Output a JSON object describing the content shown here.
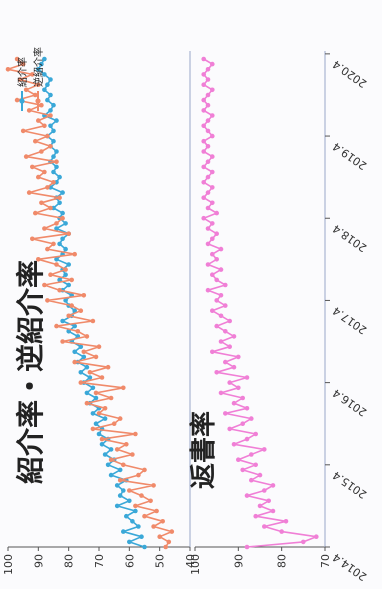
{
  "chart_data": [
    {
      "type": "line",
      "title": "紹介率・逆紹介率",
      "ylim": [
        40,
        100
      ],
      "yticks": [
        "40",
        "50",
        "60",
        "70",
        "80",
        "90",
        "100"
      ],
      "legend_position": "top-right",
      "grid": false,
      "series": [
        {
          "name": "紹介率",
          "color": "#3aa8d8",
          "values": [
            55,
            60,
            56,
            62,
            57,
            59,
            61,
            58,
            64,
            60,
            63,
            62,
            64,
            61,
            66,
            63,
            67,
            65,
            68,
            66,
            69,
            67,
            70,
            69,
            71,
            68,
            72,
            70,
            73,
            71,
            74,
            72,
            75,
            73,
            76,
            74,
            77,
            75,
            78,
            76,
            79,
            77,
            80,
            78,
            82,
            79,
            78,
            80,
            81,
            79,
            82,
            80,
            83,
            81,
            82,
            80,
            84,
            82,
            81,
            83,
            82,
            80,
            84,
            81,
            83,
            82,
            85,
            83,
            84,
            82,
            86,
            84,
            83,
            85,
            84,
            86,
            85,
            84,
            86,
            85,
            87,
            85,
            86,
            84,
            88,
            86,
            85,
            87,
            86,
            88,
            87,
            86,
            88,
            90,
            89,
            88
          ]
        },
        {
          "name": "逆紹介率",
          "color": "#f08a6a",
          "values": [
            48,
            47,
            50,
            46,
            52,
            49,
            55,
            51,
            58,
            53,
            56,
            60,
            52,
            63,
            57,
            55,
            62,
            66,
            59,
            64,
            61,
            69,
            58,
            72,
            65,
            63,
            70,
            68,
            74,
            66,
            71,
            62,
            76,
            69,
            73,
            67,
            78,
            71,
            75,
            70,
            82,
            74,
            77,
            84,
            72,
            80,
            76,
            79,
            87,
            75,
            83,
            88,
            79,
            86,
            81,
            84,
            90,
            78,
            87,
            85,
            92,
            80,
            88,
            84,
            82,
            91,
            86,
            89,
            83,
            93,
            87,
            85,
            90,
            88,
            92,
            84,
            94,
            89,
            86,
            91,
            87,
            95,
            88,
            90,
            86,
            93,
            89,
            97,
            91,
            94,
            90,
            96,
            92,
            100,
            95,
            97
          ]
        }
      ]
    },
    {
      "type": "line",
      "title": "返書率",
      "ylim": [
        70,
        100
      ],
      "yticks": [
        "70",
        "80",
        "90",
        "100"
      ],
      "xticks": [
        "2014.4",
        "2015.4",
        "2016.4",
        "2017.4",
        "2018.4",
        "2019.4",
        "2020.4"
      ],
      "grid": false,
      "series": [
        {
          "color": "#f07fd6",
          "values": [
            88,
            75,
            72,
            80,
            84,
            79,
            86,
            82,
            85,
            83,
            88,
            84,
            82,
            87,
            85,
            89,
            86,
            90,
            87,
            84,
            91,
            88,
            86,
            92,
            89,
            87,
            93,
            88,
            91,
            89,
            94,
            90,
            92,
            88,
            95,
            91,
            93,
            90,
            96,
            92,
            94,
            91,
            93,
            95,
            92,
            94,
            96,
            93,
            95,
            94,
            97,
            93,
            95,
            96,
            94,
            97,
            95,
            96,
            94,
            97,
            96,
            95,
            97,
            96,
            98,
            95,
            97,
            96,
            98,
            97,
            96,
            98,
            97,
            96,
            98,
            97,
            96,
            98,
            97,
            98,
            96,
            97,
            98,
            97,
            96,
            98,
            97,
            98,
            97,
            96,
            98,
            97,
            98,
            97,
            96,
            98
          ]
        }
      ]
    }
  ]
}
